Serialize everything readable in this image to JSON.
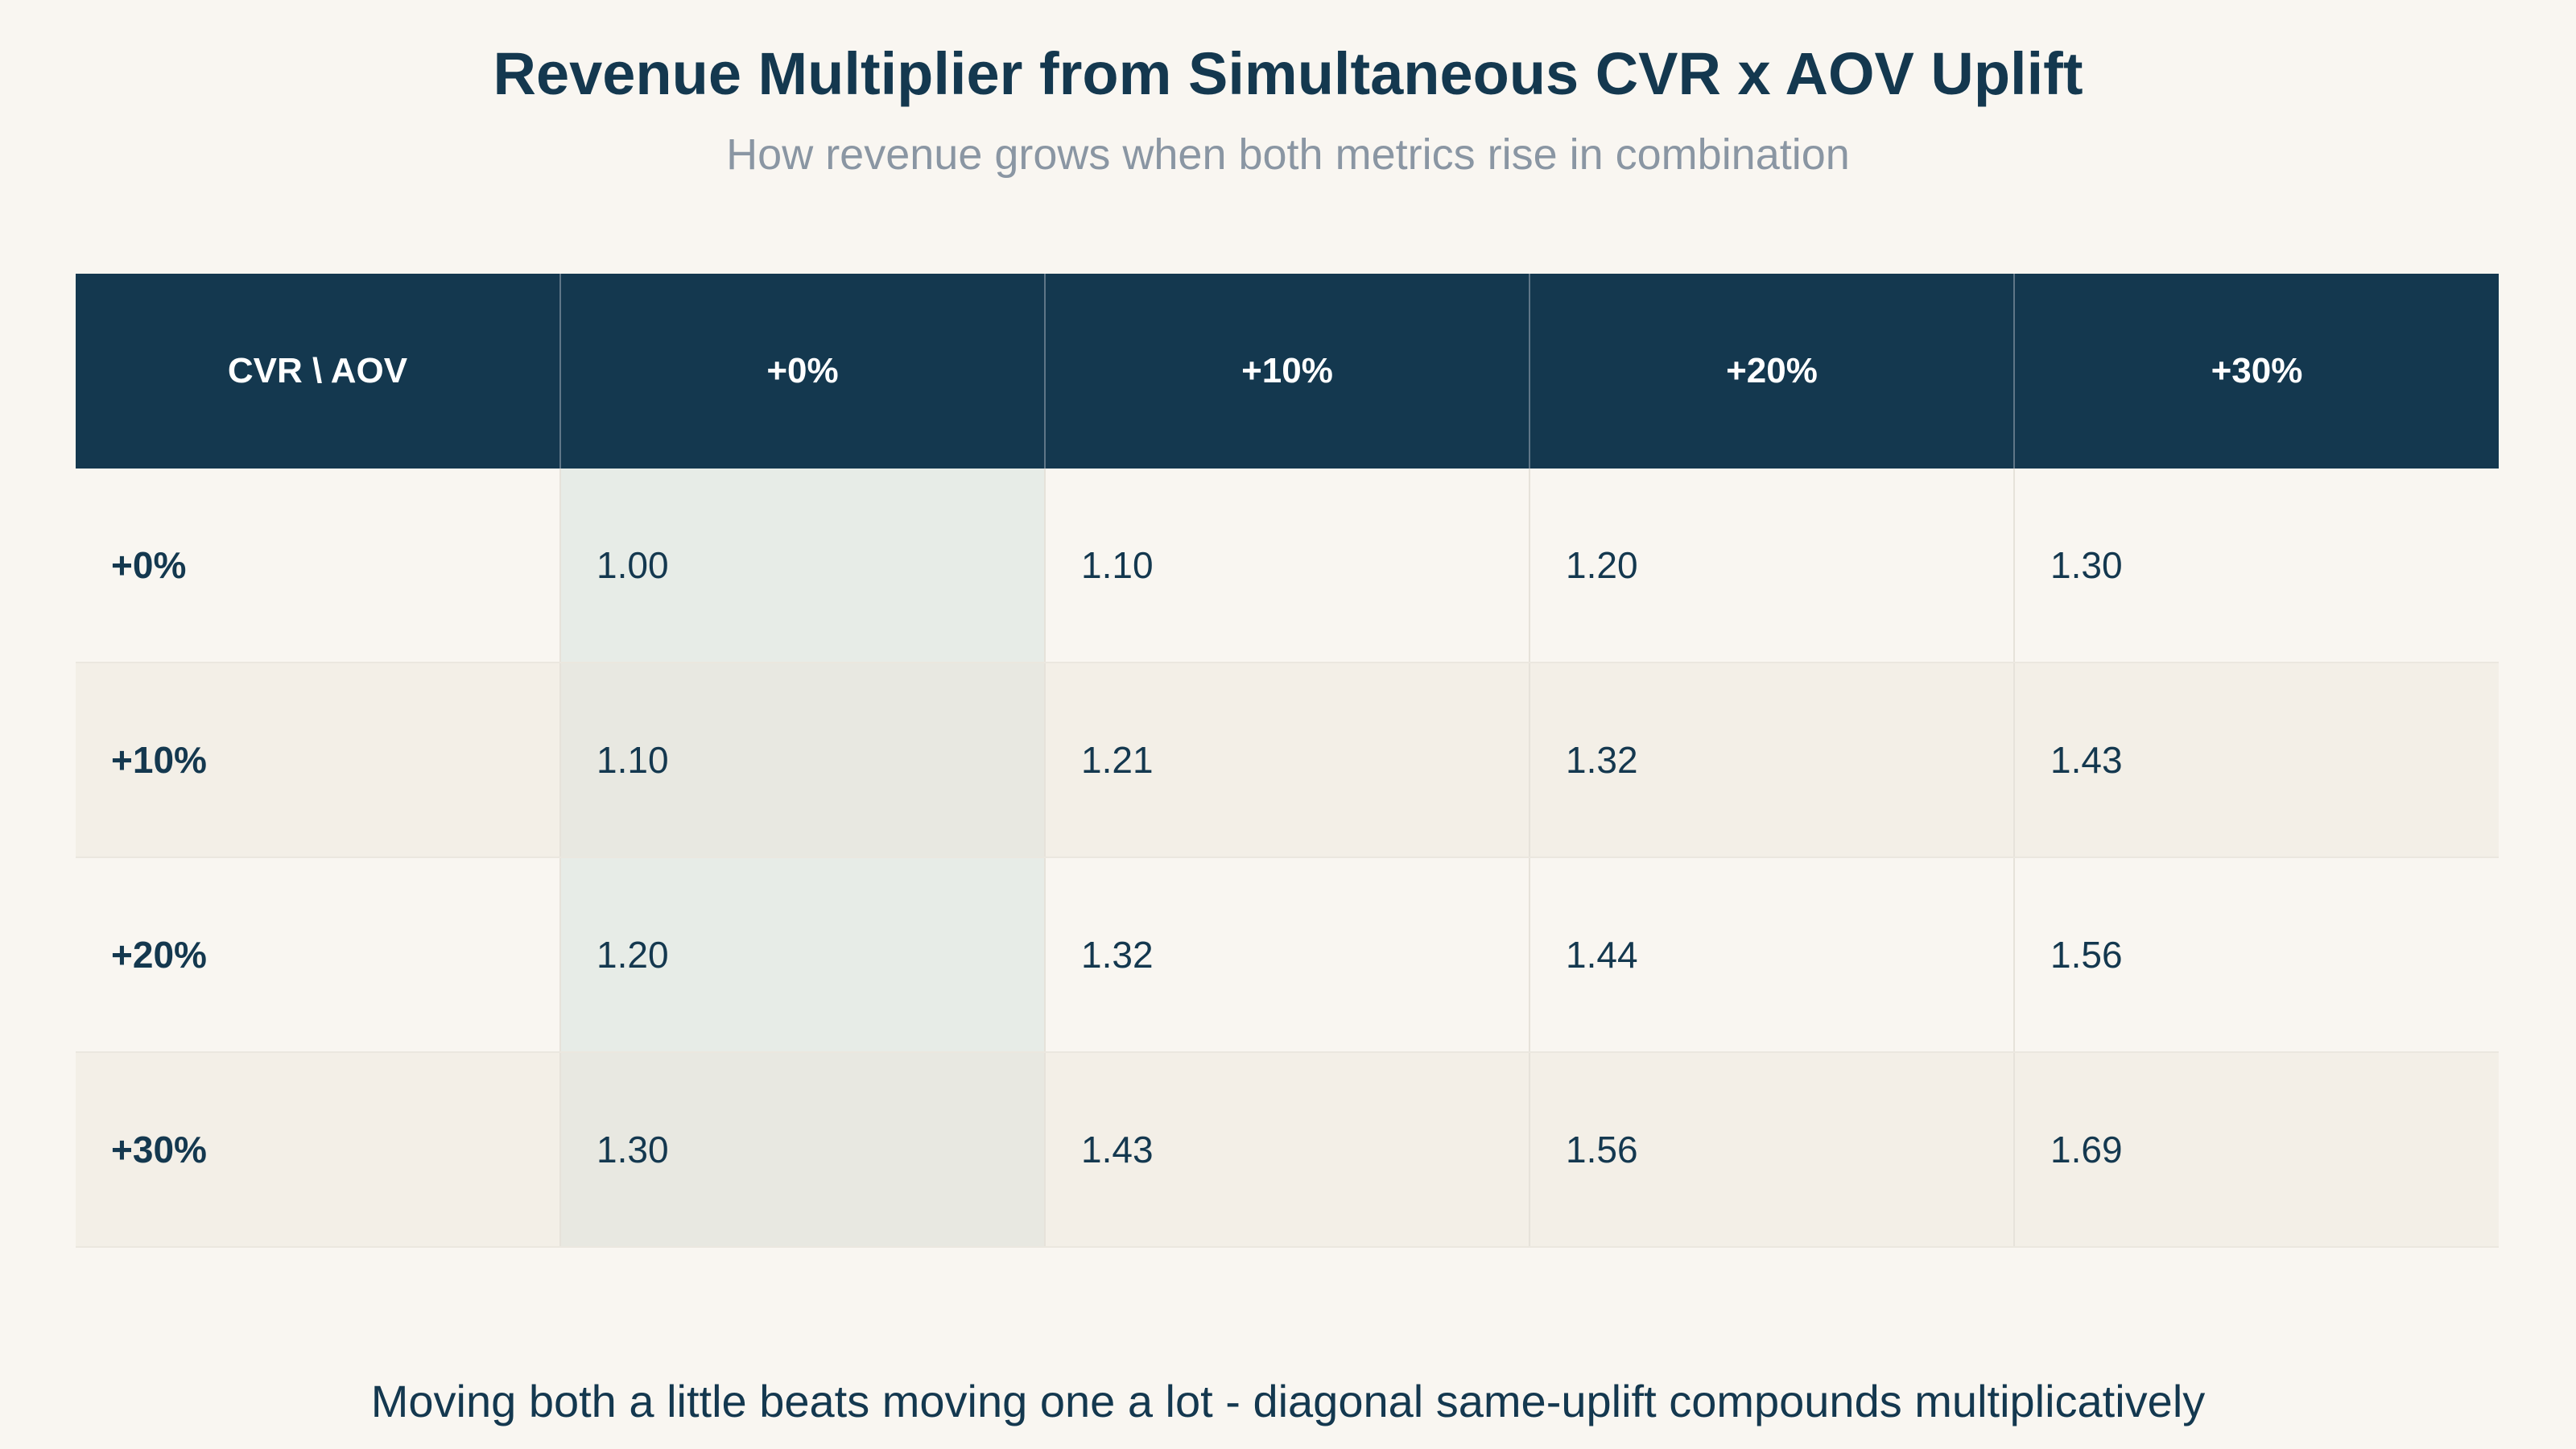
{
  "title": "Revenue Multiplier from Simultaneous CVR x AOV Uplift",
  "subtitle": "How revenue grows when both metrics rise in combination",
  "caption": "Moving both a little beats moving one a lot - diagonal same-uplift compounds multiplicatively",
  "colors": {
    "header_bg": "#14384f",
    "background": "#f9f6f1",
    "subtitle": "#8a96a3",
    "highlight_column": "#e7ece7"
  },
  "chart_data": {
    "type": "table",
    "corner_label": "CVR \\ AOV",
    "columns": [
      "+0%",
      "+10%",
      "+20%",
      "+30%"
    ],
    "rows": [
      {
        "label": "+0%",
        "values": [
          "1.00",
          "1.10",
          "1.20",
          "1.30"
        ]
      },
      {
        "label": "+10%",
        "values": [
          "1.10",
          "1.21",
          "1.32",
          "1.43"
        ]
      },
      {
        "label": "+20%",
        "values": [
          "1.20",
          "1.32",
          "1.44",
          "1.56"
        ]
      },
      {
        "label": "+30%",
        "values": [
          "1.30",
          "1.43",
          "1.56",
          "1.69"
        ]
      }
    ],
    "highlighted_column": "+0%"
  }
}
